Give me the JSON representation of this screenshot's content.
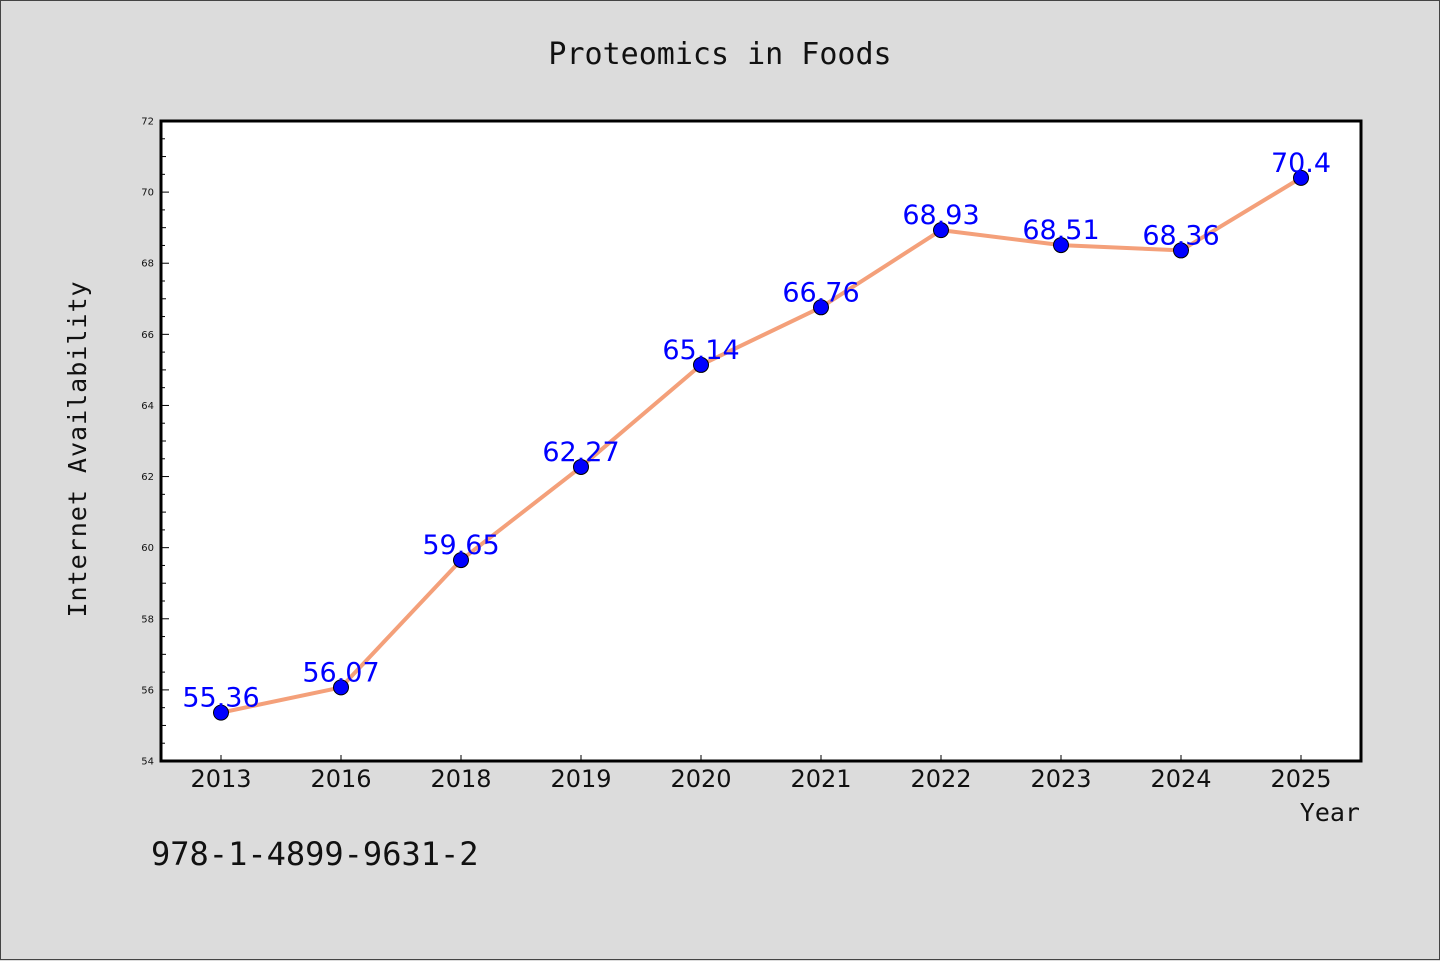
{
  "chart_data": {
    "type": "line",
    "title": "Proteomics in Foods",
    "xlabel": "Year",
    "ylabel": "Internet Availability",
    "categories": [
      "2013",
      "2016",
      "2018",
      "2019",
      "2020",
      "2021",
      "2022",
      "2023",
      "2024",
      "2025"
    ],
    "series": [
      {
        "values": [
          55.36,
          56.07,
          59.65,
          62.27,
          65.14,
          66.76,
          68.93,
          68.51,
          68.36,
          70.4
        ],
        "labels": [
          "55.36",
          "56.07",
          "59.65",
          "62.27",
          "65.14",
          "66.76",
          "68.93",
          "68.51",
          "68.36",
          "70.4"
        ],
        "line_color": "#f4a07a",
        "marker_color": "#0000ff"
      }
    ],
    "ylim": [
      54,
      72
    ],
    "yticks": [
      "54",
      "56",
      "58",
      "60",
      "62",
      "64",
      "66",
      "68",
      "70",
      "72"
    ],
    "grid": false,
    "legend": "none"
  },
  "annotation": "978-1-4899-9631-2"
}
